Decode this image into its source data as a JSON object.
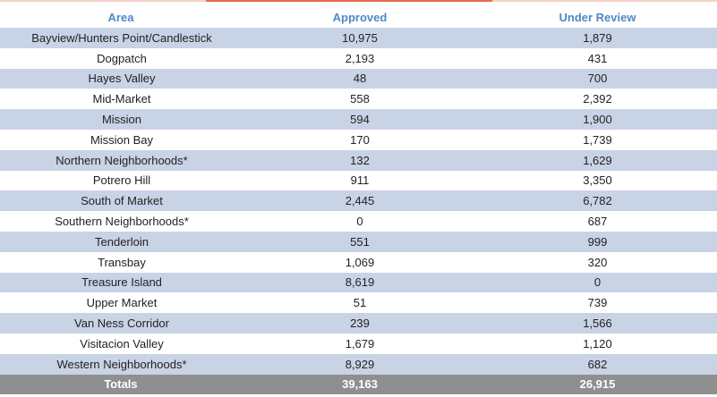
{
  "table": {
    "headers": [
      "Area",
      "Approved",
      "Under Review"
    ],
    "rows": [
      {
        "area": "Bayview/Hunters Point/Candlestick",
        "approved": "10,975",
        "under_review": "1,879"
      },
      {
        "area": "Dogpatch",
        "approved": "2,193",
        "under_review": "431"
      },
      {
        "area": "Hayes Valley",
        "approved": "48",
        "under_review": "700"
      },
      {
        "area": "Mid-Market",
        "approved": "558",
        "under_review": "2,392"
      },
      {
        "area": "Mission",
        "approved": "594",
        "under_review": "1,900"
      },
      {
        "area": "Mission Bay",
        "approved": "170",
        "under_review": "1,739"
      },
      {
        "area": "Northern Neighborhoods*",
        "approved": "132",
        "under_review": "1,629"
      },
      {
        "area": "Potrero Hill",
        "approved": "911",
        "under_review": "3,350"
      },
      {
        "area": "South of Market",
        "approved": "2,445",
        "under_review": "6,782"
      },
      {
        "area": "Southern Neighborhoods*",
        "approved": "0",
        "under_review": "687"
      },
      {
        "area": "Tenderloin",
        "approved": "551",
        "under_review": "999"
      },
      {
        "area": "Transbay",
        "approved": "1,069",
        "under_review": "320"
      },
      {
        "area": "Treasure Island",
        "approved": "8,619",
        "under_review": "0"
      },
      {
        "area": "Upper Market",
        "approved": "51",
        "under_review": "739"
      },
      {
        "area": "Van Ness Corridor",
        "approved": "239",
        "under_review": "1,566"
      },
      {
        "area": "Visitacion Valley",
        "approved": "1,679",
        "under_review": "1,120"
      },
      {
        "area": "Western Neighborhoods*",
        "approved": "8,929",
        "under_review": "682"
      }
    ],
    "totals": {
      "label": "Totals",
      "approved": "39,163",
      "under_review": "26,915"
    }
  },
  "colors": {
    "header_text": "#4f88c7",
    "row_band": "#c8d3e6",
    "totals_bg": "#8f8f8f",
    "accent": "#e76b4c"
  }
}
